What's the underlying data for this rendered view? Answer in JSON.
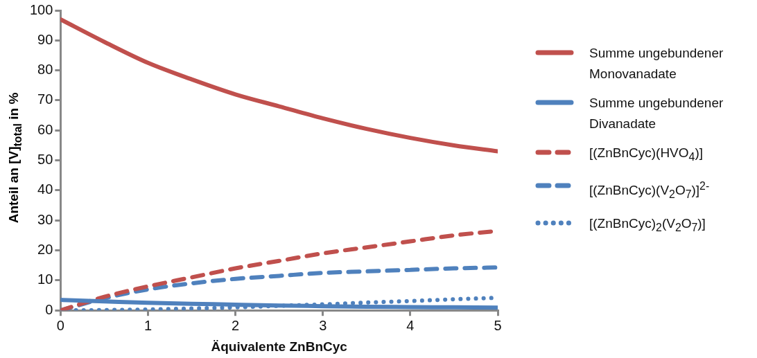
{
  "chart_data": {
    "type": "line",
    "xlabel": "Äquivalente ZnBnCyc",
    "ylabel": "Anteil an [V]$_{total}$ in %",
    "x": [
      0,
      0.5,
      1,
      1.5,
      2,
      2.5,
      3,
      3.5,
      4,
      4.5,
      5
    ],
    "xlim": [
      0,
      5
    ],
    "xticks": [
      0,
      1,
      2,
      3,
      4,
      5
    ],
    "ylim": [
      0,
      100
    ],
    "yticks": [
      0,
      10,
      20,
      30,
      40,
      50,
      60,
      70,
      80,
      90,
      100
    ],
    "grid": false,
    "legend": "right",
    "marker": "none",
    "series": [
      {
        "name": "Summe ungebundener Monovanadate",
        "color": "#c0504d",
        "line_style": "solid",
        "values": [
          97,
          89.5,
          82.5,
          77,
          72,
          68,
          64,
          60.5,
          57.5,
          55,
          53
        ]
      },
      {
        "name": "Summe ungebundener Divanadate",
        "color": "#4f81bd",
        "line_style": "solid",
        "values": [
          3.5,
          3,
          2.5,
          2.2,
          1.9,
          1.6,
          1.4,
          1.2,
          1.1,
          1,
          0.9
        ]
      },
      {
        "name": "[(ZnBnCyc)(HVO$_{4}$)]",
        "color": "#c0504d",
        "line_style": "dashed",
        "values": [
          0,
          4.5,
          8,
          11,
          14,
          16.5,
          19,
          21,
          23,
          25,
          26.5
        ]
      },
      {
        "name": "[(ZnBnCyc)(V$_{2}$O$_{7}$)]$^{2-}$",
        "color": "#4f81bd",
        "line_style": "dashed",
        "values": [
          0,
          4,
          7,
          9,
          10.5,
          11.5,
          12.5,
          13,
          13.5,
          14,
          14.3
        ]
      },
      {
        "name": "[(ZnBnCyc)$_{2}$(V$_{2}$O$_{7}$)]",
        "color": "#4f81bd",
        "line_style": "dotted",
        "values": [
          0,
          0.1,
          0.3,
          0.6,
          1,
          1.5,
          2,
          2.6,
          3.1,
          3.7,
          4.2
        ]
      }
    ]
  }
}
